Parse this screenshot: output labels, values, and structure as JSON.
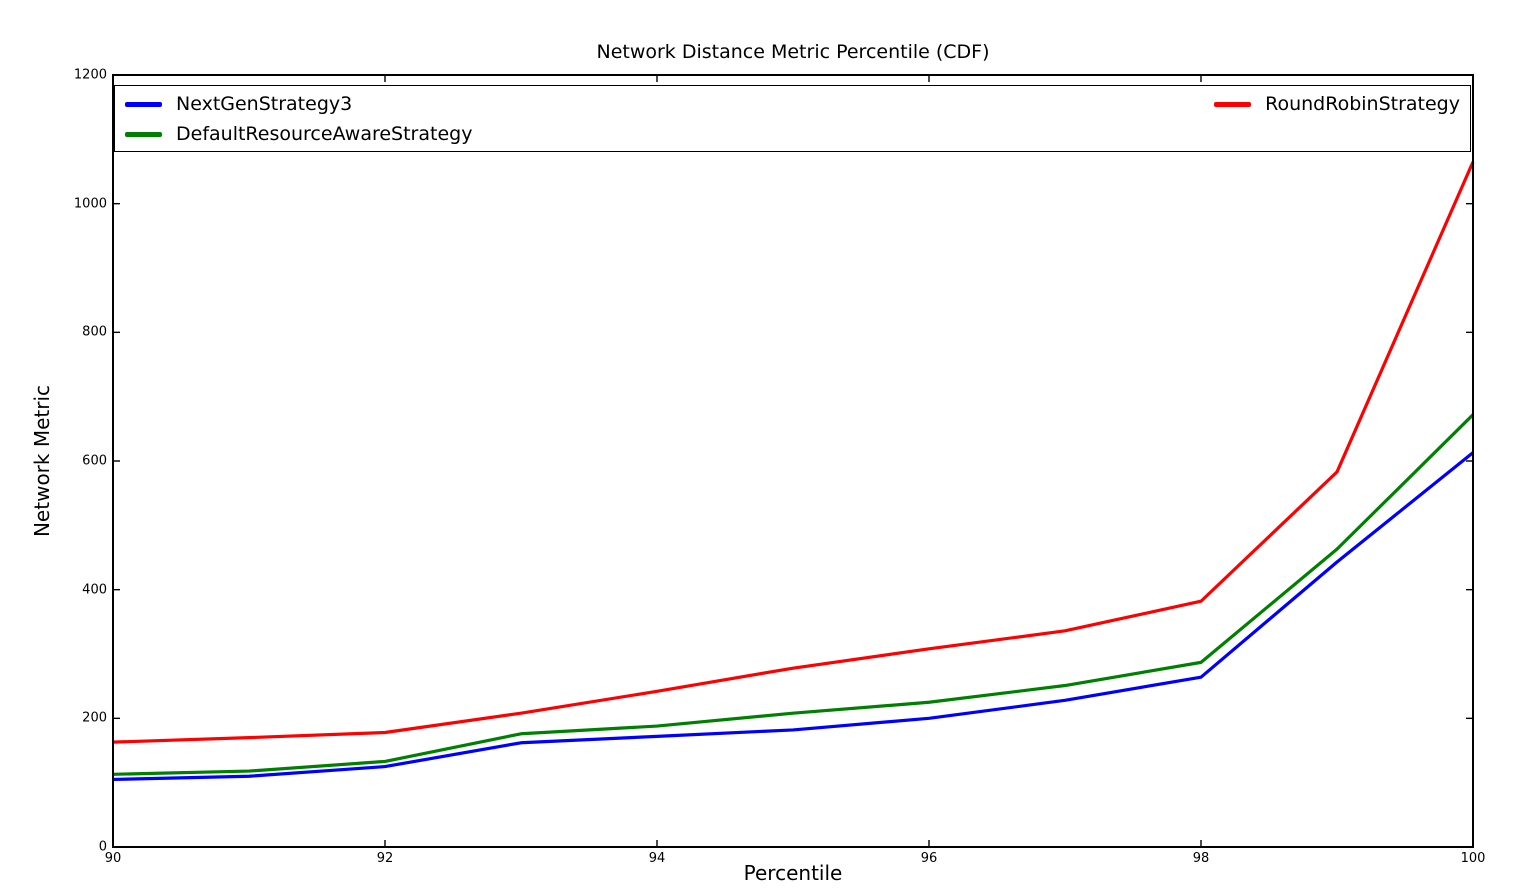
{
  "chart_data": {
    "type": "line",
    "title": "Network Distance Metric Percentile (CDF)",
    "xlabel": "Percentile",
    "ylabel": "Network Metric",
    "xlim": [
      90,
      100
    ],
    "ylim": [
      0,
      1200
    ],
    "x_ticks": [
      90,
      92,
      94,
      96,
      98,
      100
    ],
    "y_ticks": [
      0,
      200,
      400,
      600,
      800,
      1000,
      1200
    ],
    "grid": false,
    "legend_position": "top-inside, expanded full width, two columns",
    "x": [
      90,
      91,
      92,
      93,
      94,
      95,
      96,
      97,
      98,
      99,
      100
    ],
    "series": [
      {
        "name": "NextGenStrategy3",
        "color": "#0000ff",
        "values": [
          105,
          110,
          125,
          162,
          172,
          182,
          200,
          228,
          264,
          443,
          613
        ]
      },
      {
        "name": "DefaultResourceAwareStrategy",
        "color": "#008000",
        "values": [
          113,
          118,
          133,
          176,
          188,
          208,
          225,
          251,
          287,
          463,
          672
        ]
      },
      {
        "name": "RoundRobinStrategy",
        "color": "#ff0000",
        "values": [
          163,
          170,
          178,
          208,
          242,
          278,
          308,
          336,
          382,
          583,
          1065
        ]
      }
    ]
  }
}
